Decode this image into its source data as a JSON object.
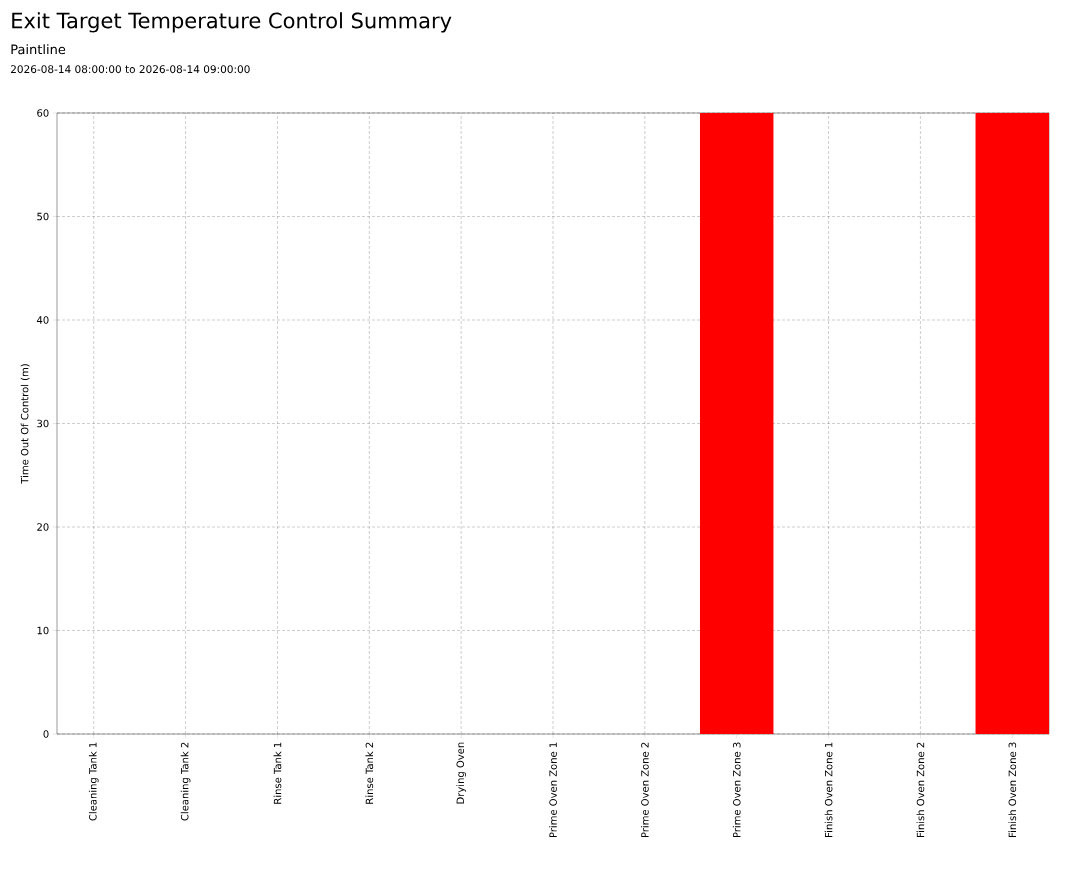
{
  "chart_data": {
    "type": "bar",
    "title": "Exit Target Temperature Control Summary",
    "subtitle": "Paintline",
    "annotations": [
      "2026-08-14 08:00:00 to 2026-08-14 09:00:00"
    ],
    "ylabel": "Time Out Of Control (m)",
    "categories": [
      "Cleaning Tank 1",
      "Cleaning Tank 2",
      "Rinse Tank 1",
      "Rinse Tank 2",
      "Drying Oven",
      "Prime Oven Zone 1",
      "Prime Oven Zone 2",
      "Prime Oven Zone 3",
      "Finish Oven Zone 1",
      "Finish Oven Zone 2",
      "Finish Oven Zone 3"
    ],
    "values": [
      0,
      0,
      0,
      0,
      0,
      0,
      0,
      60,
      0,
      0,
      60
    ],
    "color": "#ff0000",
    "ylim": [
      0,
      60
    ],
    "yticks": [
      0,
      10,
      20,
      30,
      40,
      50,
      60
    ],
    "grid": true
  }
}
